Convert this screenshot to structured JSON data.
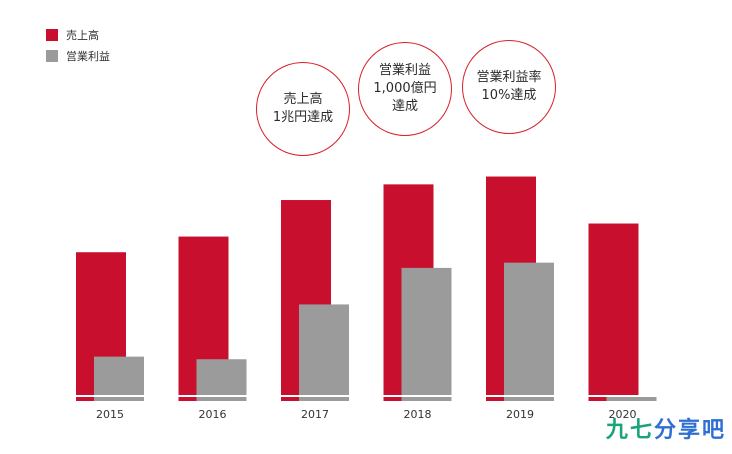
{
  "legend": [
    {
      "label": "売上高",
      "color": "#c8102e"
    },
    {
      "label": "営業利益",
      "color": "#9b9b9b"
    }
  ],
  "callouts": [
    {
      "text": "売上高\n1兆円達成",
      "year": "2017"
    },
    {
      "text": "営業利益\n1,000億円\n達成",
      "year": "2018"
    },
    {
      "text": "営業利益率\n10%達成",
      "year": "2019"
    }
  ],
  "watermark": {
    "text": "九七分享吧",
    "colors": [
      "#1aa37a",
      "#2f6fd1"
    ]
  },
  "chart_data": {
    "type": "bar",
    "categories": [
      "2015",
      "2016",
      "2017",
      "2018",
      "2019",
      "2020"
    ],
    "series": [
      {
        "name": "売上高",
        "color": "#c8102e",
        "values": [
          57,
          63,
          77,
          83,
          86,
          68
        ]
      },
      {
        "name": "営業利益",
        "color": "#9b9b9b",
        "values": [
          17,
          16,
          37,
          51,
          53,
          2
        ]
      }
    ],
    "ylim": [
      0,
      100
    ],
    "grid": false,
    "legend_position": "top-left"
  }
}
